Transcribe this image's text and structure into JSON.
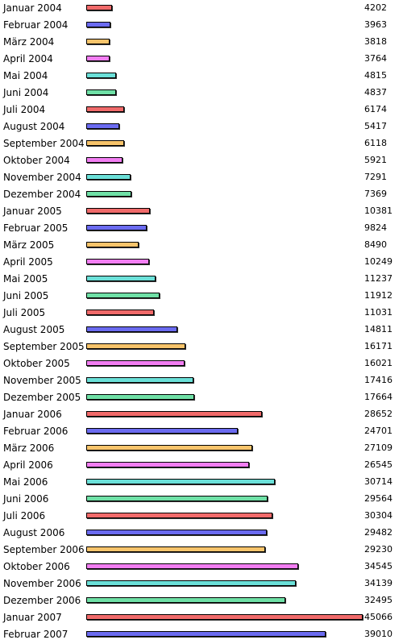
{
  "chart_data": {
    "type": "bar",
    "orientation": "horizontal",
    "title": "",
    "xlabel": "",
    "ylabel": "",
    "xlim": [
      0,
      45066
    ],
    "grid": false,
    "legend": "none",
    "colors": [
      "#f06a6a",
      "#6b6bf0",
      "#f7c46b",
      "#f27ef2",
      "#6be0d8",
      "#6fe0a6"
    ],
    "categories": [
      "Januar 2004",
      "Februar 2004",
      "März 2004",
      "April 2004",
      "Mai 2004",
      "Juni 2004",
      "Juli 2004",
      "August 2004",
      "September 2004",
      "Oktober 2004",
      "November 2004",
      "Dezember 2004",
      "Januar 2005",
      "Februar 2005",
      "März 2005",
      "April 2005",
      "Mai 2005",
      "Juni 2005",
      "Juli 2005",
      "August 2005",
      "September 2005",
      "Oktober 2005",
      "November 2005",
      "Dezember 2005",
      "Januar 2006",
      "Februar 2006",
      "März 2006",
      "April 2006",
      "Mai 2006",
      "Juni 2006",
      "Juli 2006",
      "August 2006",
      "September 2006",
      "Oktober 2006",
      "November 2006",
      "Dezember 2006",
      "Januar 2007",
      "Februar 2007"
    ],
    "values": [
      4202,
      3963,
      3818,
      3764,
      4815,
      4837,
      6174,
      5417,
      6118,
      5921,
      7291,
      7369,
      10381,
      9824,
      8490,
      10249,
      11237,
      11912,
      11031,
      14811,
      16171,
      16021,
      17416,
      17664,
      28652,
      24701,
      27109,
      26545,
      30714,
      29564,
      30304,
      29482,
      29230,
      34545,
      34139,
      32495,
      45066,
      39010
    ]
  }
}
